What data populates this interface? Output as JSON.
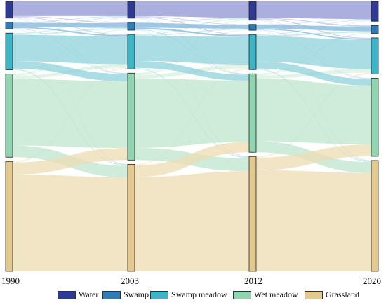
{
  "years": [
    "1990",
    "2003",
    "2012",
    "2020"
  ],
  "categories": [
    {
      "name": "Water",
      "color": "#2f3a96",
      "link_color": "#8d94d2"
    },
    {
      "name": "Swamp",
      "color": "#2f7db8",
      "link_color": "#7fb6dc"
    },
    {
      "name": "Swamp meadow",
      "color": "#3bb6c8",
      "link_color": "#8fd2dc"
    },
    {
      "name": "Wet meadow",
      "color": "#8fd5b0",
      "link_color": "#bfe4cc"
    },
    {
      "name": "Grassland",
      "color": "#e3c98e",
      "link_color": "#ecdcb3"
    }
  ],
  "chart_data": {
    "type": "sankey",
    "nodes_by_year": {
      "1990": [
        7.5,
        3.0,
        16.5,
        37.5,
        49.5
      ],
      "2003": [
        7.5,
        3.5,
        15.5,
        39.0,
        48.0
      ],
      "2012": [
        8.0,
        2.5,
        15.0,
        33.5,
        49.0
      ],
      "2020": [
        8.5,
        3.5,
        15.5,
        33.5,
        47.5
      ]
    },
    "major_flows": [
      {
        "from": "Water",
        "to": "Water",
        "period": "1990-2003",
        "share": 0.9
      },
      {
        "from": "Swamp meadow",
        "to": "Swamp meadow",
        "period": "1990-2003",
        "share": 0.75
      },
      {
        "from": "Swamp meadow",
        "to": "Wet meadow",
        "period": "1990-2003",
        "share": 0.25
      },
      {
        "from": "Wet meadow",
        "to": "Wet meadow",
        "period": "1990-2003",
        "share": 0.85
      },
      {
        "from": "Wet meadow",
        "to": "Grassland",
        "period": "1990-2003",
        "share": 0.15
      },
      {
        "from": "Grassland",
        "to": "Grassland",
        "period": "1990-2003",
        "share": 0.9
      },
      {
        "from": "Grassland",
        "to": "Wet meadow",
        "period": "1990-2003",
        "share": 0.1
      }
    ]
  }
}
